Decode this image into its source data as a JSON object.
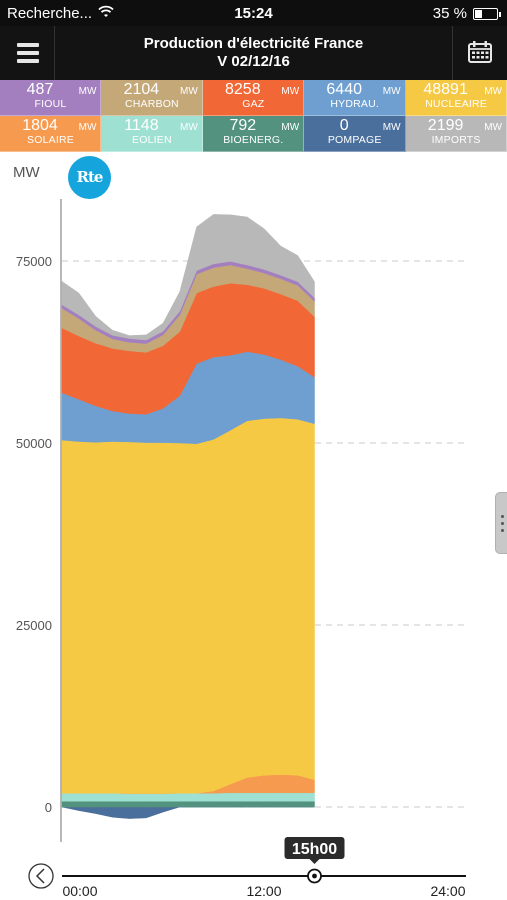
{
  "status_bar": {
    "carrier": "Recherche...",
    "time": "15:24",
    "battery": "35 %",
    "battery_level": 0.35
  },
  "header": {
    "title_line1": "Production d'électricité France",
    "title_line2": "V 02/12/16",
    "menu_icon": "hamburger-menu-icon",
    "calendar_icon": "calendar-icon"
  },
  "tiles": [
    {
      "value": "487",
      "unit": "MW",
      "name": "FIOUL",
      "color": "#a47fc0"
    },
    {
      "value": "2104",
      "unit": "MW",
      "name": "CHARBON",
      "color": "#c4a878"
    },
    {
      "value": "8258",
      "unit": "MW",
      "name": "GAZ",
      "color": "#f26736"
    },
    {
      "value": "6440",
      "unit": "MW",
      "name": "HYDRAU.",
      "color": "#6e9fd0"
    },
    {
      "value": "48891",
      "unit": "MW",
      "name": "NUCLEAIRE",
      "color": "#f6c945"
    },
    {
      "value": "1804",
      "unit": "MW",
      "name": "SOLAIRE",
      "color": "#f59a4e"
    },
    {
      "value": "1148",
      "unit": "MW",
      "name": "EOLIEN",
      "color": "#9ee0d2"
    },
    {
      "value": "792",
      "unit": "MW",
      "name": "BIOENERG.",
      "color": "#53927e"
    },
    {
      "value": "0",
      "unit": "MW",
      "name": "POMPAGE",
      "color": "#4a6f9c"
    },
    {
      "value": "2199",
      "unit": "MW",
      "name": "IMPORTS",
      "color": "#b8b8b8"
    }
  ],
  "chart": {
    "y_unit_label": "MW",
    "logo_text": "Rte",
    "cursor_label": "15h00",
    "x_tick_labels": [
      "00:00",
      "12:00",
      "24:00"
    ]
  },
  "chart_data": {
    "type": "area",
    "ylabel": "MW",
    "ylim": [
      -2500,
      82000
    ],
    "y_ticks": [
      0,
      25000,
      50000,
      75000
    ],
    "x": [
      0,
      1,
      2,
      3,
      4,
      5,
      6,
      7,
      8,
      9,
      10,
      11,
      12,
      13,
      14,
      15
    ],
    "x_tick_labels": [
      "00:00",
      "12:00",
      "24:00"
    ],
    "xlim": [
      0,
      24
    ],
    "grid": "dashed horizontal",
    "series": [
      {
        "name": "POMPAGE",
        "color": "#4a6f9c",
        "values": [
          0,
          -500,
          -900,
          -1400,
          -1600,
          -1500,
          -700,
          0,
          0,
          0,
          0,
          0,
          0,
          0,
          0,
          0
        ]
      },
      {
        "name": "BIOENERG.",
        "color": "#53927e",
        "values": [
          800,
          800,
          800,
          800,
          800,
          800,
          800,
          800,
          800,
          800,
          800,
          800,
          800,
          800,
          800,
          800
        ]
      },
      {
        "name": "EOLIEN",
        "color": "#9ee0d2",
        "values": [
          1100,
          1100,
          1100,
          1100,
          1050,
          1050,
          1050,
          1100,
          1100,
          1100,
          1150,
          1150,
          1150,
          1150,
          1150,
          1150
        ]
      },
      {
        "name": "SOLAIRE",
        "color": "#f59a4e",
        "values": [
          0,
          0,
          0,
          0,
          0,
          0,
          0,
          0,
          0,
          300,
          1200,
          2100,
          2400,
          2500,
          2400,
          1800
        ]
      },
      {
        "name": "NUCLEAIRE",
        "color": "#f6c945",
        "values": [
          48500,
          48300,
          48200,
          48300,
          48300,
          48200,
          48200,
          48100,
          48000,
          48300,
          48600,
          49000,
          49000,
          49000,
          48900,
          48900
        ]
      },
      {
        "name": "HYDRAU.",
        "color": "#6e9fd0",
        "values": [
          6500,
          5800,
          5000,
          4200,
          3900,
          3900,
          4700,
          6500,
          11000,
          11300,
          10300,
          9500,
          8800,
          8000,
          7300,
          6400
        ]
      },
      {
        "name": "GAZ",
        "color": "#f26736",
        "values": [
          8900,
          8700,
          8600,
          8600,
          8600,
          8500,
          8600,
          8800,
          9700,
          9700,
          9900,
          9200,
          9100,
          9000,
          9000,
          8300
        ]
      },
      {
        "name": "CHARBON",
        "color": "#c4a878",
        "values": [
          2700,
          2400,
          1800,
          1300,
          1200,
          1200,
          1500,
          2300,
          2600,
          2600,
          2500,
          2200,
          2100,
          2100,
          2100,
          2100
        ]
      },
      {
        "name": "FIOUL",
        "color": "#a47fc0",
        "values": [
          500,
          500,
          500,
          500,
          500,
          500,
          500,
          500,
          500,
          500,
          500,
          500,
          500,
          500,
          500,
          500
        ]
      },
      {
        "name": "IMPORTS",
        "color": "#b8b8b8",
        "values": [
          3200,
          3000,
          1400,
          700,
          400,
          700,
          1100,
          2700,
          6000,
          6800,
          6400,
          6600,
          5600,
          4000,
          3600,
          2200
        ]
      }
    ]
  }
}
